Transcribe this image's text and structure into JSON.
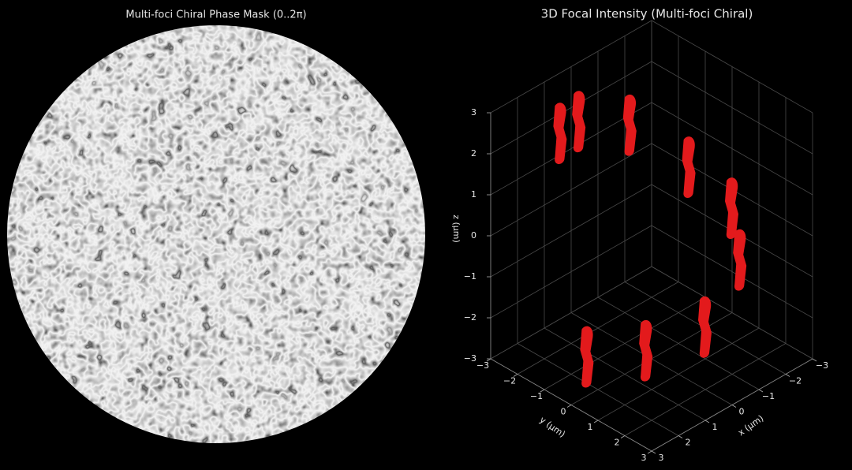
{
  "chart_data": [
    {
      "type": "image",
      "title": "Multi-foci Chiral Phase Mask (0..2π)"
    },
    {
      "type": "scatter3d",
      "title": "3D Focal Intensity (Multi-foci Chiral)",
      "xlabel": "x (μm)",
      "ylabel": "y (μm)",
      "zlabel": "z (μm)",
      "xlim": [
        -3,
        3
      ],
      "ylim": [
        -3,
        3
      ],
      "zlim": [
        -3,
        3
      ],
      "xticks": [
        {
          "value": -3,
          "label": "−3"
        },
        {
          "value": -2,
          "label": "−2"
        },
        {
          "value": -1,
          "label": "−1"
        },
        0,
        1,
        2,
        3
      ],
      "yticks": [
        {
          "value": -3,
          "label": "−3"
        },
        {
          "value": -2,
          "label": "−2"
        },
        {
          "value": -1,
          "label": "−1"
        },
        0,
        1,
        2,
        3
      ],
      "zticks": [
        {
          "value": -3,
          "label": "−3"
        },
        {
          "value": -2,
          "label": "−2"
        },
        {
          "value": -1,
          "label": "−1"
        },
        0,
        1,
        2,
        3
      ],
      "grid": true,
      "series": [
        {
          "color": "#e31a1c",
          "x": [
            2.5,
            1.2,
            0.0,
            -1.5,
            -1.7,
            -1.3,
            -0.5,
            0.6,
            0.8
          ],
          "y": [
            0.1,
            1.0,
            2.0,
            1.8,
            1.3,
            0.1,
            -1.3,
            -2.1,
            -2.6
          ],
          "z": [
            -2.0,
            -2.0,
            -1.5,
            -0.5,
            0.5,
            1.2,
            2.0,
            2.2,
            1.8
          ]
        }
      ]
    }
  ]
}
